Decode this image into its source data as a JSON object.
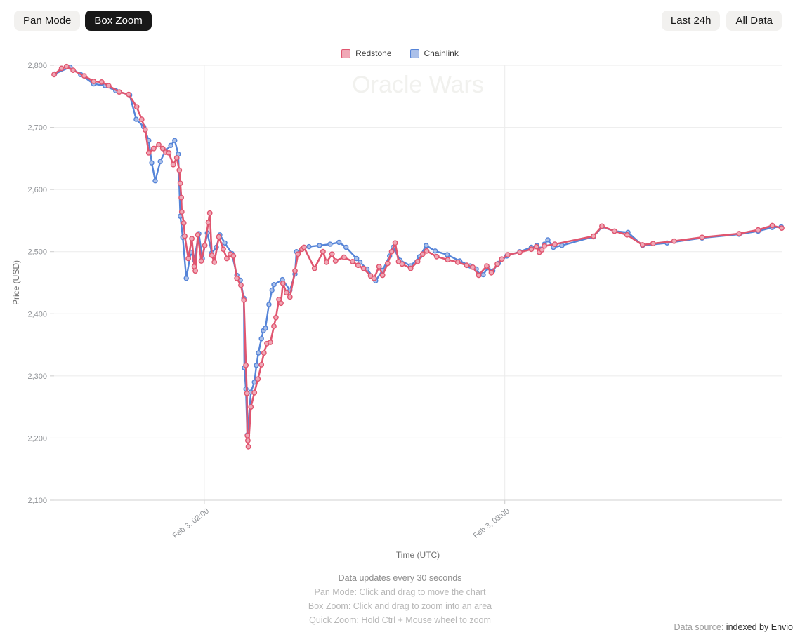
{
  "toolbar": {
    "pan_mode_label": "Pan Mode",
    "box_zoom_label": "Box Zoom",
    "last_24h_label": "Last 24h",
    "all_data_label": "All Data",
    "active_mode": "Box Zoom"
  },
  "watermark": "Oracle Wars",
  "footer": {
    "line1": "Data updates every 30 seconds",
    "line2": "Pan Mode: Click and drag to move the chart",
    "line3": "Box Zoom: Click and drag to zoom into an area",
    "line4": "Quick Zoom: Hold Ctrl + Mouse wheel to zoom"
  },
  "datasource": {
    "label": "Data source:",
    "link": "indexed by Envio"
  },
  "chart_data": {
    "type": "line",
    "title": "Oracle Wars",
    "xlabel": "Time (UTC)",
    "ylabel": "Price (USD)",
    "x_unit": "minutes after Feb 3, 01:30 UTC",
    "xlim": [
      0,
      145.3
    ],
    "ylim": [
      2100,
      2800
    ],
    "grid": true,
    "legend_position": "top",
    "x_axis": {
      "title": "Time (UTC)",
      "ticks": [
        {
          "t": 30,
          "label": "Feb 3, 02:00"
        },
        {
          "t": 90,
          "label": "Feb 3, 03:00"
        }
      ]
    },
    "y_axis": {
      "title": "Price (USD)",
      "ticks": [
        {
          "v": 2800,
          "label": "2,800"
        },
        {
          "v": 2700,
          "label": "2,700"
        },
        {
          "v": 2600,
          "label": "2,600"
        },
        {
          "v": 2500,
          "label": "2,500"
        },
        {
          "v": 2400,
          "label": "2,400"
        },
        {
          "v": 2300,
          "label": "2,300"
        },
        {
          "v": 2200,
          "label": "2,200"
        },
        {
          "v": 2100,
          "label": "2,100"
        }
      ]
    },
    "series": [
      {
        "name": "Chainlink",
        "color": "#5584d8",
        "fill": "#abc0e9",
        "line_width": 2.4,
        "point_radius": 3.0,
        "points": [
          [
            0.1,
            2786
          ],
          [
            3.2,
            2797
          ],
          [
            5.3,
            2785
          ],
          [
            7.9,
            2770
          ],
          [
            10.2,
            2767
          ],
          [
            12.3,
            2759
          ],
          [
            15.1,
            2752
          ],
          [
            16.4,
            2713
          ],
          [
            17.9,
            2701
          ],
          [
            18.9,
            2679
          ],
          [
            19.5,
            2643
          ],
          [
            20.2,
            2614
          ],
          [
            21.2,
            2645
          ],
          [
            22.2,
            2662
          ],
          [
            23.3,
            2671
          ],
          [
            24.1,
            2679
          ],
          [
            24.8,
            2657
          ],
          [
            25.2,
            2557
          ],
          [
            25.7,
            2523
          ],
          [
            26.4,
            2457
          ],
          [
            27.3,
            2499
          ],
          [
            28,
            2487
          ],
          [
            28.9,
            2529
          ],
          [
            29.6,
            2489
          ],
          [
            30.6,
            2530
          ],
          [
            31.5,
            2498
          ],
          [
            32.4,
            2507
          ],
          [
            33.1,
            2527
          ],
          [
            34.1,
            2514
          ],
          [
            35.5,
            2497
          ],
          [
            36.5,
            2462
          ],
          [
            37.2,
            2454
          ],
          [
            37.9,
            2425
          ],
          [
            38,
            2313
          ],
          [
            38.3,
            2279
          ],
          [
            38.6,
            2205
          ],
          [
            39.3,
            2274
          ],
          [
            40,
            2290
          ],
          [
            40.4,
            2317
          ],
          [
            40.8,
            2337
          ],
          [
            41.4,
            2360
          ],
          [
            41.8,
            2373
          ],
          [
            42.2,
            2377
          ],
          [
            42.9,
            2415
          ],
          [
            43.5,
            2438
          ],
          [
            43.9,
            2447
          ],
          [
            45.6,
            2455
          ],
          [
            47.1,
            2438
          ],
          [
            48.1,
            2464
          ],
          [
            48.4,
            2500
          ],
          [
            49.5,
            2504
          ],
          [
            50.9,
            2508
          ],
          [
            53,
            2510
          ],
          [
            55.1,
            2512
          ],
          [
            56.9,
            2515
          ],
          [
            58.3,
            2507
          ],
          [
            60.4,
            2489
          ],
          [
            61.1,
            2483
          ],
          [
            62.5,
            2472
          ],
          [
            64.2,
            2453
          ],
          [
            65.6,
            2470
          ],
          [
            67,
            2493
          ],
          [
            67.7,
            2507
          ],
          [
            69.1,
            2486
          ],
          [
            71.2,
            2477
          ],
          [
            73,
            2492
          ],
          [
            74.3,
            2510
          ],
          [
            76.1,
            2501
          ],
          [
            78.5,
            2495
          ],
          [
            81,
            2485
          ],
          [
            83.1,
            2477
          ],
          [
            84.3,
            2472
          ],
          [
            85,
            2463
          ],
          [
            85.7,
            2463
          ],
          [
            86.6,
            2474
          ],
          [
            87.6,
            2469
          ],
          [
            88.7,
            2481
          ],
          [
            90.4,
            2493
          ],
          [
            93,
            2500
          ],
          [
            95.3,
            2507
          ],
          [
            96.4,
            2510
          ],
          [
            97.1,
            2504
          ],
          [
            97.9,
            2512
          ],
          [
            98.6,
            2519
          ],
          [
            99.7,
            2507
          ],
          [
            101.4,
            2510
          ],
          [
            107.7,
            2524
          ],
          [
            109.4,
            2540
          ],
          [
            111.9,
            2533
          ],
          [
            114.6,
            2531
          ],
          [
            117.5,
            2510
          ],
          [
            122.4,
            2514
          ],
          [
            129.4,
            2522
          ],
          [
            136.8,
            2528
          ],
          [
            140.6,
            2533
          ],
          [
            143.4,
            2539
          ],
          [
            145.2,
            2540
          ]
        ]
      },
      {
        "name": "Redstone",
        "color": "#e0556f",
        "fill": "#f0a8b6",
        "line_width": 2.6,
        "point_radius": 3.2,
        "points": [
          [
            0,
            2785
          ],
          [
            1.5,
            2795
          ],
          [
            2.5,
            2798
          ],
          [
            3.8,
            2792
          ],
          [
            6,
            2783
          ],
          [
            7.9,
            2774
          ],
          [
            9.5,
            2773
          ],
          [
            10.9,
            2767
          ],
          [
            13,
            2757
          ],
          [
            14.9,
            2753
          ],
          [
            16.5,
            2733
          ],
          [
            17.5,
            2713
          ],
          [
            18.2,
            2696
          ],
          [
            18.9,
            2659
          ],
          [
            19.9,
            2666
          ],
          [
            20.9,
            2672
          ],
          [
            21.7,
            2666
          ],
          [
            22.3,
            2660
          ],
          [
            22.9,
            2659
          ],
          [
            23.8,
            2640
          ],
          [
            24.5,
            2651
          ],
          [
            25,
            2631
          ],
          [
            25.2,
            2610
          ],
          [
            25.4,
            2587
          ],
          [
            25.5,
            2564
          ],
          [
            25.9,
            2546
          ],
          [
            26.1,
            2525
          ],
          [
            26.8,
            2489
          ],
          [
            27.5,
            2521
          ],
          [
            28,
            2476
          ],
          [
            28.2,
            2469
          ],
          [
            28.7,
            2527
          ],
          [
            29.4,
            2485
          ],
          [
            30.1,
            2510
          ],
          [
            30.8,
            2547
          ],
          [
            31.1,
            2562
          ],
          [
            31.5,
            2494
          ],
          [
            32,
            2483
          ],
          [
            32.9,
            2524
          ],
          [
            33.8,
            2504
          ],
          [
            34.5,
            2489
          ],
          [
            35.2,
            2496
          ],
          [
            35.8,
            2493
          ],
          [
            36.5,
            2457
          ],
          [
            37.3,
            2446
          ],
          [
            37.9,
            2422
          ],
          [
            38.3,
            2317
          ],
          [
            38.5,
            2272
          ],
          [
            38.6,
            2204
          ],
          [
            38.7,
            2196
          ],
          [
            38.8,
            2186
          ],
          [
            39.3,
            2250
          ],
          [
            40,
            2273
          ],
          [
            40.7,
            2295
          ],
          [
            41.4,
            2318
          ],
          [
            41.9,
            2337
          ],
          [
            42.5,
            2352
          ],
          [
            43.2,
            2354
          ],
          [
            43.9,
            2380
          ],
          [
            44.3,
            2394
          ],
          [
            44.9,
            2423
          ],
          [
            45.3,
            2417
          ],
          [
            45.7,
            2449
          ],
          [
            46.4,
            2434
          ],
          [
            47.1,
            2427
          ],
          [
            48.1,
            2469
          ],
          [
            48.7,
            2496
          ],
          [
            49.5,
            2504
          ],
          [
            49.9,
            2507
          ],
          [
            52,
            2473
          ],
          [
            53.7,
            2500
          ],
          [
            54.4,
            2483
          ],
          [
            55.5,
            2496
          ],
          [
            56.2,
            2485
          ],
          [
            57.9,
            2491
          ],
          [
            59.6,
            2484
          ],
          [
            60.7,
            2478
          ],
          [
            61.8,
            2473
          ],
          [
            63.2,
            2461
          ],
          [
            63.9,
            2457
          ],
          [
            64.9,
            2476
          ],
          [
            65.6,
            2462
          ],
          [
            66.6,
            2481
          ],
          [
            67.4,
            2500
          ],
          [
            68.1,
            2514
          ],
          [
            68.8,
            2484
          ],
          [
            69.5,
            2480
          ],
          [
            71.2,
            2473
          ],
          [
            72.6,
            2484
          ],
          [
            73.6,
            2496
          ],
          [
            74.4,
            2501
          ],
          [
            76.4,
            2492
          ],
          [
            78.6,
            2487
          ],
          [
            80.6,
            2483
          ],
          [
            82.4,
            2478
          ],
          [
            83.6,
            2475
          ],
          [
            84.8,
            2462
          ],
          [
            86.4,
            2477
          ],
          [
            87.3,
            2466
          ],
          [
            88.5,
            2480
          ],
          [
            89.4,
            2488
          ],
          [
            90.6,
            2495
          ],
          [
            93,
            2499
          ],
          [
            95.3,
            2504
          ],
          [
            96.3,
            2508
          ],
          [
            96.9,
            2499
          ],
          [
            97.4,
            2503
          ],
          [
            97.9,
            2509
          ],
          [
            100,
            2512
          ],
          [
            107.7,
            2525
          ],
          [
            109.4,
            2541
          ],
          [
            111.9,
            2533
          ],
          [
            114.4,
            2527
          ],
          [
            117.5,
            2511
          ],
          [
            119.6,
            2513
          ],
          [
            123.8,
            2517
          ],
          [
            129.4,
            2523
          ],
          [
            136.8,
            2529
          ],
          [
            140.6,
            2535
          ],
          [
            143.4,
            2542
          ],
          [
            145.3,
            2538
          ]
        ]
      }
    ]
  }
}
